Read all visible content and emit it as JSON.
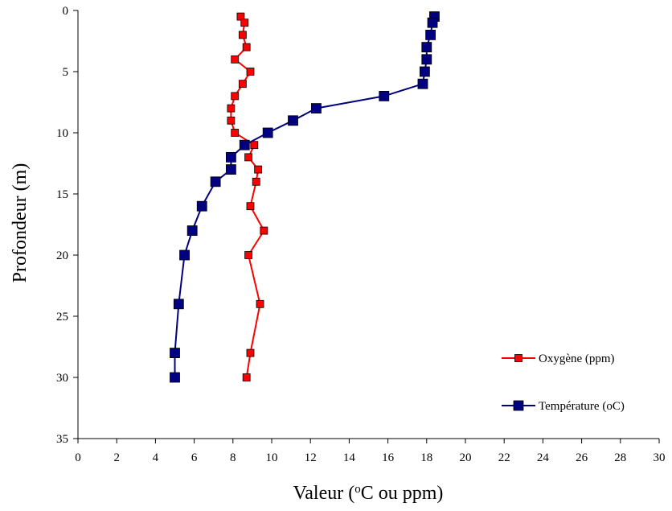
{
  "chart_data": {
    "type": "line",
    "xlabel": "Valeur (oC ou ppm)",
    "xlabel_parts": {
      "pre": "Valeur (",
      "sup": "o",
      "post": "C ou ppm)"
    },
    "ylabel": "Profondeur (m)",
    "xlim": [
      0,
      30
    ],
    "ylim": [
      0,
      35
    ],
    "y_inverted": true,
    "xticks": [
      "0",
      "2",
      "4",
      "6",
      "8",
      "10",
      "12",
      "14",
      "16",
      "18",
      "20",
      "22",
      "24",
      "26",
      "28",
      "30"
    ],
    "yticks": [
      "0",
      "5",
      "10",
      "15",
      "20",
      "25",
      "30",
      "35"
    ],
    "grid": false,
    "legend_position": "right",
    "series": [
      {
        "name": "Oxygène (ppm)",
        "color": "#ff0000",
        "marker_color": "#ff0000",
        "points": [
          {
            "x": 8.4,
            "y": 0.5
          },
          {
            "x": 8.6,
            "y": 1
          },
          {
            "x": 8.5,
            "y": 2
          },
          {
            "x": 8.7,
            "y": 3
          },
          {
            "x": 8.1,
            "y": 4
          },
          {
            "x": 8.9,
            "y": 5
          },
          {
            "x": 8.5,
            "y": 6
          },
          {
            "x": 8.1,
            "y": 7
          },
          {
            "x": 7.9,
            "y": 8
          },
          {
            "x": 7.9,
            "y": 9
          },
          {
            "x": 8.1,
            "y": 10
          },
          {
            "x": 9.1,
            "y": 11
          },
          {
            "x": 8.8,
            "y": 12
          },
          {
            "x": 9.3,
            "y": 13
          },
          {
            "x": 9.2,
            "y": 14
          },
          {
            "x": 8.9,
            "y": 16
          },
          {
            "x": 9.6,
            "y": 18
          },
          {
            "x": 8.8,
            "y": 20
          },
          {
            "x": 9.4,
            "y": 24
          },
          {
            "x": 8.9,
            "y": 28
          },
          {
            "x": 8.7,
            "y": 30
          }
        ]
      },
      {
        "name": "Température (oC)",
        "color": "#000080",
        "marker_color": "#000080",
        "points": [
          {
            "x": 18.4,
            "y": 0.5
          },
          {
            "x": 18.3,
            "y": 1
          },
          {
            "x": 18.2,
            "y": 2
          },
          {
            "x": 18.0,
            "y": 3
          },
          {
            "x": 18.0,
            "y": 4
          },
          {
            "x": 17.9,
            "y": 5
          },
          {
            "x": 17.8,
            "y": 6
          },
          {
            "x": 15.8,
            "y": 7
          },
          {
            "x": 12.3,
            "y": 8
          },
          {
            "x": 11.1,
            "y": 9
          },
          {
            "x": 9.8,
            "y": 10
          },
          {
            "x": 8.6,
            "y": 11
          },
          {
            "x": 7.9,
            "y": 12
          },
          {
            "x": 7.9,
            "y": 13
          },
          {
            "x": 7.1,
            "y": 14
          },
          {
            "x": 6.4,
            "y": 16
          },
          {
            "x": 5.9,
            "y": 18
          },
          {
            "x": 5.5,
            "y": 20
          },
          {
            "x": 5.2,
            "y": 24
          },
          {
            "x": 5.0,
            "y": 28
          },
          {
            "x": 5.0,
            "y": 30
          }
        ]
      }
    ]
  }
}
